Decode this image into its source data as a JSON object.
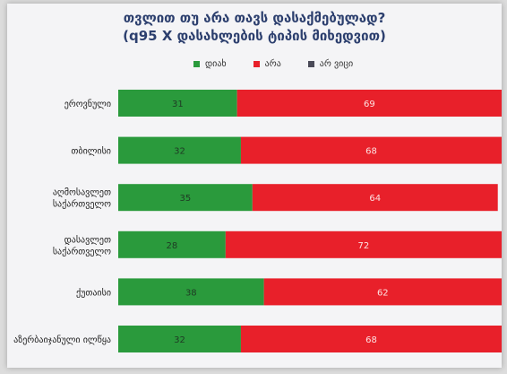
{
  "chart_data": {
    "type": "bar",
    "stacked": true,
    "orientation": "horizontal",
    "title": "თვლით თუ არა თავს დასაქმებულად?",
    "subtitle": "(q95 X დასახლების ტიპის მიხედვით)",
    "categories": [
      "ეროვნული",
      "თბილისი",
      "აღმოსავლეთ საქართველო",
      "დასავლეთ საქართველო",
      "ქუთაისი",
      "აზერბაიჯანული ილწყა"
    ],
    "category_lines": [
      [
        "ეროვნული"
      ],
      [
        "თბილისი"
      ],
      [
        "აღმოსავლეთ",
        "საქართველო"
      ],
      [
        "დასავლეთ",
        "საქართველო"
      ],
      [
        "ქუთაისი"
      ],
      [
        "აზერბაიჯანული ილწყა"
      ]
    ],
    "series": [
      {
        "name": "დიახ",
        "values": [
          31,
          32,
          35,
          28,
          38,
          32
        ],
        "color": "#2a9a3c"
      },
      {
        "name": "არა",
        "values": [
          69,
          68,
          64,
          72,
          62,
          68
        ],
        "color": "#e8202a"
      },
      {
        "name": "არ ვიცი",
        "values": [
          0,
          0,
          0,
          0,
          0,
          0
        ],
        "color": "#4a4a58"
      }
    ],
    "xlim": [
      0,
      100
    ],
    "grid": false,
    "legend": "top"
  }
}
